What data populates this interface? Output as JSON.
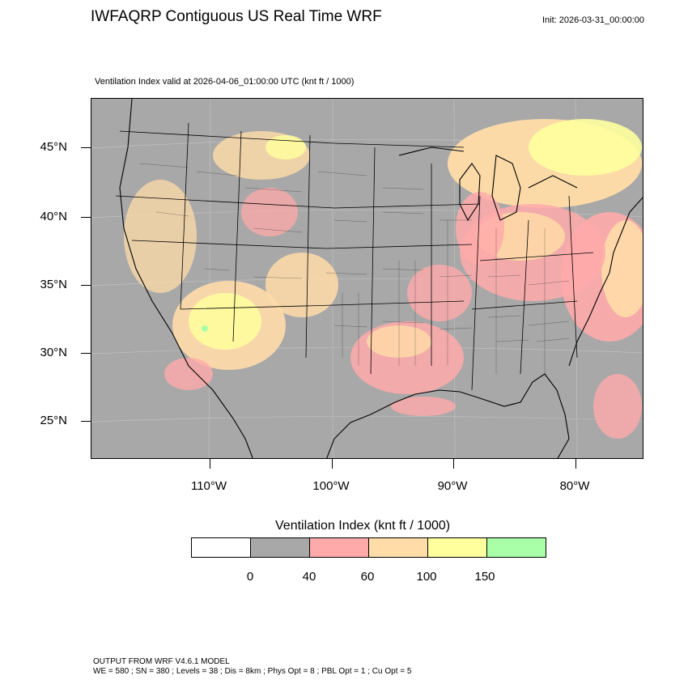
{
  "header": {
    "title": "IWFAQRP Contiguous US Real Time WRF",
    "init": "Init: 2026-03-31_00:00:00",
    "subtitle": "Ventilation Index valid at 2026-04-06_01:00:00 UTC   (knt ft / 1000)"
  },
  "map": {
    "lat_labels": [
      "45°N",
      "40°N",
      "35°N",
      "30°N",
      "25°N"
    ],
    "lon_labels": [
      "110°W",
      "100°W",
      "90°W",
      "80°W"
    ],
    "background_color": "#a8a8a8"
  },
  "colorbar": {
    "title": "Ventilation Index  (knt ft / 1000)",
    "labels": [
      "0",
      "40",
      "60",
      "100",
      "150"
    ],
    "colors": [
      "#ffffff",
      "#a8a8a8",
      "#ffaaaa",
      "#ffdca8",
      "#ffff9e",
      "#a8ffa8"
    ]
  },
  "footer": {
    "line1": "OUTPUT FROM WRF V4.6.1 MODEL",
    "line2": "WE = 580 ; SN = 380 ; Levels = 38 ; Dis = 8km ; Phys Opt = 8 ; PBL Opt = 1 ; Cu Opt = 5"
  }
}
